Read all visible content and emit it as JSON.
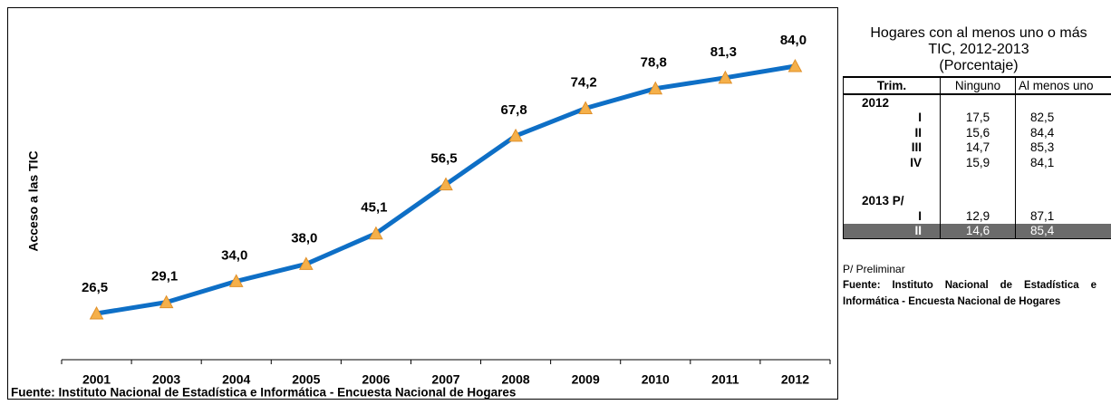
{
  "chart_data": {
    "type": "line",
    "y_label": "Acceso a las TIC",
    "categories": [
      "2001",
      "2003",
      "2004",
      "2005",
      "2006",
      "2007",
      "2008",
      "2009",
      "2010",
      "2011",
      "2012"
    ],
    "values": [
      26.5,
      29.1,
      34.0,
      38.0,
      45.1,
      56.5,
      67.8,
      74.2,
      78.8,
      81.3,
      84.0
    ],
    "value_labels": [
      "26,5",
      "29,1",
      "34,0",
      "38,0",
      "45,1",
      "56,5",
      "67,8",
      "74,2",
      "78,8",
      "81,3",
      "84,0"
    ],
    "color": "#0e6fc6",
    "marker_color": "#f5b04a",
    "source": "Fuente: Instituto Nacional de Estadística e Informática - Encuesta Nacional de Hogares"
  },
  "side_panel": {
    "title": [
      "Hogares con al menos uno o más",
      "TIC, 2012-2013",
      "(Porcentaje)"
    ],
    "header": [
      "Trim.",
      "Ninguno",
      "Al menos uno"
    ],
    "groups": [
      {
        "label": "2012",
        "rows": [
          [
            "I",
            "17,5",
            "82,5"
          ],
          [
            "II",
            "15,6",
            "84,4"
          ],
          [
            "III",
            "14,7",
            "85,3"
          ],
          [
            "IV",
            "15,9",
            "84,1"
          ]
        ]
      },
      {
        "label": "2013 P/",
        "rows": [
          [
            "I",
            "12,9",
            "87,1"
          ],
          [
            "II",
            "14,6",
            "85,4"
          ]
        ]
      }
    ],
    "footnote": "P/ Preliminar",
    "source": "Fuente: Instituto Nacional de Estadística e Informática - Encuesta Nacional de Hogares"
  }
}
